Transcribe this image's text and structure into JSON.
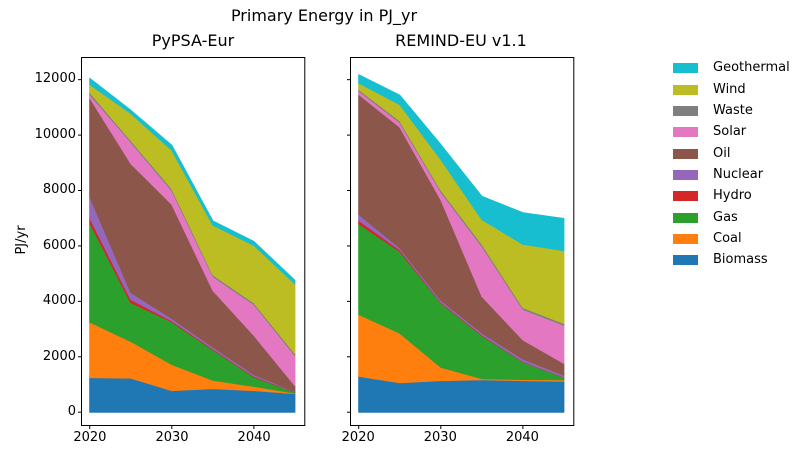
{
  "figure": {
    "title": "Primary Energy in PJ_yr",
    "ylabel": "PJ/yr"
  },
  "legend": [
    {
      "label": "Geothermal",
      "color": "#17becf"
    },
    {
      "label": "Wind",
      "color": "#bcbd22"
    },
    {
      "label": "Waste",
      "color": "#7f7f7f"
    },
    {
      "label": "Solar",
      "color": "#e377c2"
    },
    {
      "label": "Oil",
      "color": "#8c564b"
    },
    {
      "label": "Nuclear",
      "color": "#9467bd"
    },
    {
      "label": "Hydro",
      "color": "#d62728"
    },
    {
      "label": "Gas",
      "color": "#2ca02c"
    },
    {
      "label": "Coal",
      "color": "#ff7f0e"
    },
    {
      "label": "Biomass",
      "color": "#1f77b4"
    }
  ],
  "chart_data": [
    {
      "type": "area",
      "title": "PyPSA-Eur",
      "stacked": true,
      "x": [
        2020,
        2025,
        2030,
        2035,
        2040,
        2045
      ],
      "xticks": [
        2020,
        2030,
        2040
      ],
      "xtick_labels": [
        "2020",
        "2030",
        "2040"
      ],
      "yticks": [
        0,
        2000,
        4000,
        6000,
        8000,
        10000,
        12000
      ],
      "ytick_labels": [
        "0",
        "2000",
        "4000",
        "6000",
        "8000",
        "10000",
        "12000"
      ],
      "xlim": [
        2019,
        2046.2
      ],
      "ylim": [
        -480,
        12800
      ],
      "grid": false,
      "series": [
        {
          "name": "Biomass",
          "color": "#1f77b4",
          "values": [
            1250,
            1230,
            780,
            850,
            780,
            670
          ]
        },
        {
          "name": "Coal",
          "color": "#ff7f0e",
          "values": [
            2000,
            1320,
            940,
            300,
            150,
            20
          ]
        },
        {
          "name": "Gas",
          "color": "#2ca02c",
          "values": [
            3590,
            1400,
            1540,
            1100,
            340,
            30
          ]
        },
        {
          "name": "Hydro",
          "color": "#d62728",
          "values": [
            170,
            120,
            40,
            30,
            30,
            15
          ]
        },
        {
          "name": "Nuclear",
          "color": "#9467bd",
          "values": [
            770,
            250,
            80,
            70,
            60,
            15
          ]
        },
        {
          "name": "Oil",
          "color": "#8c564b",
          "values": [
            3570,
            4650,
            4120,
            2040,
            1410,
            210
          ]
        },
        {
          "name": "Solar",
          "color": "#e377c2",
          "values": [
            110,
            780,
            500,
            510,
            1120,
            1090
          ]
        },
        {
          "name": "Waste",
          "color": "#7f7f7f",
          "values": [
            80,
            50,
            60,
            50,
            50,
            60
          ]
        },
        {
          "name": "Wind",
          "color": "#bcbd22",
          "values": [
            290,
            980,
            1390,
            1800,
            2080,
            2520
          ]
        },
        {
          "name": "Geothermal",
          "color": "#17becf",
          "values": [
            220,
            120,
            180,
            150,
            140,
            130
          ]
        }
      ]
    },
    {
      "type": "area",
      "title": "REMIND-EU v1.1",
      "stacked": true,
      "x": [
        2020,
        2025,
        2030,
        2035,
        2040,
        2045
      ],
      "xticks": [
        2020,
        2030,
        2040
      ],
      "xtick_labels": [
        "2020",
        "2030",
        "2040"
      ],
      "yticks": [
        0,
        2000,
        4000,
        6000,
        8000,
        10000,
        12000
      ],
      "ytick_labels": [],
      "xlim": [
        2019,
        2046.2
      ],
      "ylim": [
        -480,
        12800
      ],
      "grid": false,
      "series": [
        {
          "name": "Biomass",
          "color": "#1f77b4",
          "values": [
            1300,
            1060,
            1140,
            1170,
            1140,
            1120
          ]
        },
        {
          "name": "Coal",
          "color": "#ff7f0e",
          "values": [
            2230,
            1790,
            480,
            40,
            40,
            50
          ]
        },
        {
          "name": "Gas",
          "color": "#2ca02c",
          "values": [
            3270,
            2950,
            2320,
            1550,
            630,
            90
          ]
        },
        {
          "name": "Hydro",
          "color": "#d62728",
          "values": [
            120,
            60,
            30,
            30,
            20,
            10
          ]
        },
        {
          "name": "Nuclear",
          "color": "#9467bd",
          "values": [
            220,
            70,
            70,
            70,
            90,
            70
          ]
        },
        {
          "name": "Oil",
          "color": "#8c564b",
          "values": [
            4330,
            4360,
            3630,
            1320,
            690,
            420
          ]
        },
        {
          "name": "Solar",
          "color": "#e377c2",
          "values": [
            120,
            160,
            280,
            1810,
            1100,
            1380
          ]
        },
        {
          "name": "Waste",
          "color": "#7f7f7f",
          "values": [
            50,
            60,
            60,
            70,
            60,
            60
          ]
        },
        {
          "name": "Wind",
          "color": "#bcbd22",
          "values": [
            240,
            590,
            1110,
            890,
            2290,
            2630
          ]
        },
        {
          "name": "Geothermal",
          "color": "#17becf",
          "values": [
            300,
            340,
            540,
            840,
            1140,
            1160
          ]
        }
      ]
    }
  ]
}
